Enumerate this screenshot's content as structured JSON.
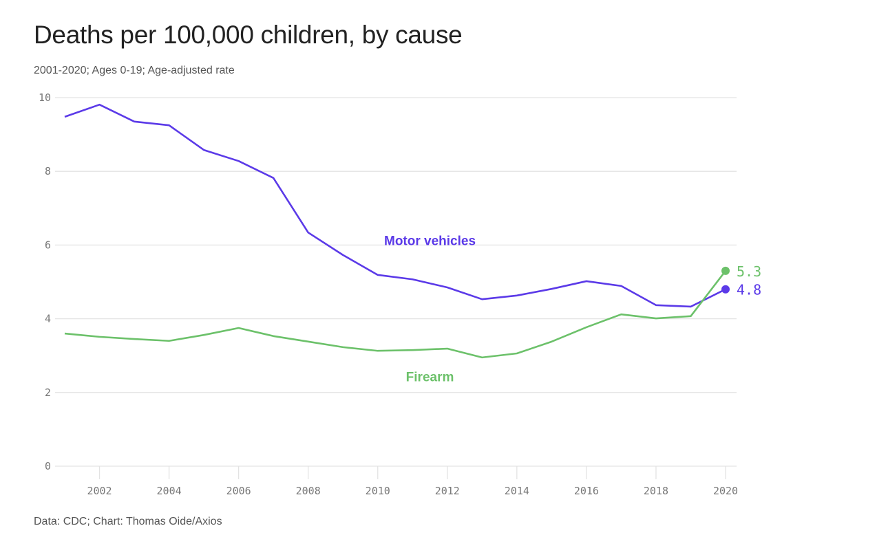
{
  "chart_data": {
    "type": "line",
    "title": "Deaths per 100,000 children, by cause",
    "subtitle": "2001-2020; Ages 0-19; Age-adjusted rate",
    "source": "Data: CDC; Chart: Thomas Oide/Axios",
    "xlabel": "",
    "ylabel": "",
    "xlim": [
      2001,
      2020
    ],
    "ylim": [
      0,
      10
    ],
    "yticks": [
      0,
      2,
      4,
      6,
      8,
      10
    ],
    "xticks": [
      2002,
      2004,
      2006,
      2008,
      2010,
      2012,
      2014,
      2016,
      2018,
      2020
    ],
    "grid": true,
    "x": [
      2001,
      2002,
      2003,
      2004,
      2005,
      2006,
      2007,
      2008,
      2009,
      2010,
      2011,
      2012,
      2013,
      2014,
      2015,
      2016,
      2017,
      2018,
      2019,
      2020
    ],
    "series": [
      {
        "name": "Motor vehicles",
        "color": "#5b3ae8",
        "values": [
          9.48,
          9.81,
          9.35,
          9.25,
          8.58,
          8.28,
          7.82,
          6.34,
          5.73,
          5.19,
          5.07,
          4.85,
          4.53,
          4.63,
          4.81,
          5.02,
          4.89,
          4.37,
          4.33,
          4.8
        ],
        "end_label": "4.8",
        "label_position": {
          "x": 2011.5,
          "y": 6.0
        }
      },
      {
        "name": "Firearm",
        "color": "#6cc16a",
        "values": [
          3.6,
          3.51,
          3.45,
          3.4,
          3.56,
          3.75,
          3.53,
          3.38,
          3.23,
          3.13,
          3.15,
          3.19,
          2.95,
          3.06,
          3.38,
          3.77,
          4.12,
          4.01,
          4.07,
          5.3
        ],
        "end_label": "5.3",
        "label_position": {
          "x": 2011.5,
          "y": 2.3
        }
      }
    ]
  }
}
